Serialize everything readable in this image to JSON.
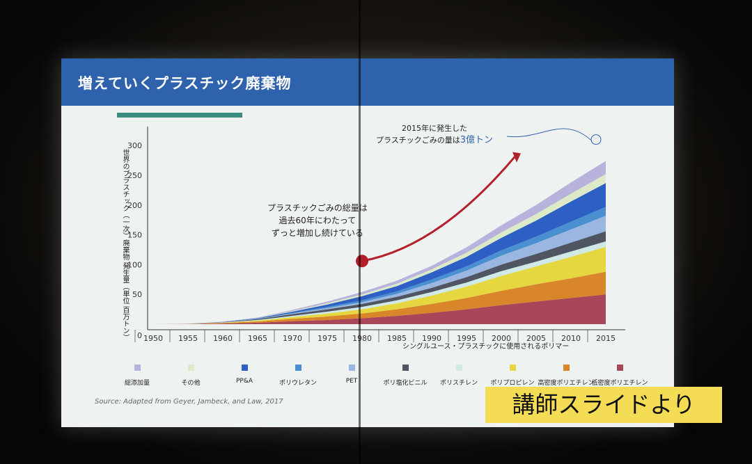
{
  "slide": {
    "title": "増えていくプラスチック廃棄物",
    "source": "Source:  Adapted from Geyer, Jambeck, and Law, 2017",
    "annotation_2015_line1": "2015年に発生した",
    "annotation_2015_line2a": "プラスチックごみの量は",
    "annotation_2015_line2b": "3億トン",
    "annotation_mid_line1": "プラスチックごみの総量は",
    "annotation_mid_line2": "過去60年にわたって",
    "annotation_mid_line3": "ずっと増加し続けている",
    "x_axis_title": "シングルユース・プラスチックに使用されるポリマー",
    "y_axis_label": "世界のプラスチック（一次）廃棄物 発生量（単位 百万トン）"
  },
  "watermark": "講師スライドより",
  "colors": {
    "title_bar": "#2f62ad",
    "accent_teal": "#3d8c80",
    "arrow": "#b3202a",
    "watermark_bg": "#f4dd55"
  },
  "chart_data": {
    "type": "area",
    "stacked": true,
    "xlabel": "シングルユース・プラスチックに使用されるポリマー",
    "ylabel": "世界のプラスチック（一次）廃棄物 発生量（単位 百万トン）",
    "ylim": [
      0,
      320
    ],
    "xlim": [
      1950,
      2015
    ],
    "x_ticks": [
      "1950",
      "1955",
      "1960",
      "1965",
      "1970",
      "1975",
      "1980",
      "1985",
      "1990",
      "1995",
      "2000",
      "2005",
      "2010",
      "2015"
    ],
    "y_ticks": [
      "0",
      "50",
      "100",
      "150",
      "200",
      "250",
      "300"
    ],
    "grid": false,
    "legend_position": "bottom",
    "x": [
      1950,
      1955,
      1960,
      1965,
      1970,
      1975,
      1980,
      1985,
      1990,
      1995,
      2000,
      2005,
      2010,
      2015
    ],
    "series": [
      {
        "name": "低密度ポリエチレン",
        "color": "#a8465a",
        "values": [
          0,
          0.2,
          1,
          2.5,
          5,
          7,
          10,
          14,
          19,
          25,
          32,
          38,
          44,
          50
        ]
      },
      {
        "name": "高密度ポリエチレン",
        "color": "#d9852a",
        "values": [
          0,
          0.2,
          1,
          2,
          4,
          6,
          8,
          11,
          15,
          19,
          24,
          29,
          33,
          38
        ]
      },
      {
        "name": "ポリプロピレン",
        "color": "#e6d640",
        "values": [
          0,
          0.1,
          0.5,
          1.5,
          3,
          5,
          7,
          10,
          14,
          19,
          25,
          30,
          36,
          42
        ]
      },
      {
        "name": "ポリスチレン",
        "color": "#cfe9e6",
        "values": [
          0,
          0.1,
          0.4,
          1,
          2,
          3,
          4,
          5,
          6,
          7,
          8,
          8,
          9,
          9
        ]
      },
      {
        "name": "ポリ塩化ビニル",
        "color": "#4f5563",
        "values": [
          0,
          0.1,
          0.5,
          1.5,
          3,
          4,
          5,
          6,
          7,
          9,
          11,
          13,
          15,
          17
        ]
      },
      {
        "name": "PET",
        "color": "#9bb6e0",
        "values": [
          0,
          0,
          0.1,
          0.3,
          1,
          2,
          3,
          5,
          8,
          11,
          15,
          18,
          22,
          26
        ]
      },
      {
        "name": "ポリウレタン",
        "color": "#4a8fd0",
        "values": [
          0,
          0,
          0.2,
          0.5,
          1,
          2,
          3,
          4,
          6,
          7,
          9,
          11,
          13,
          15
        ]
      },
      {
        "name": "PP&A",
        "color": "#2d5fc4",
        "values": [
          0,
          0,
          0.2,
          0.8,
          2,
          4,
          7,
          9,
          12,
          16,
          21,
          27,
          34,
          40
        ]
      },
      {
        "name": "その他",
        "color": "#dceac8",
        "values": [
          0,
          0,
          0.1,
          0.3,
          1,
          2,
          3,
          4,
          5,
          7,
          9,
          11,
          13,
          15
        ]
      },
      {
        "name": "総添加量",
        "color": "#b7b3dc",
        "values": [
          0,
          0.1,
          0.3,
          0.7,
          2,
          3,
          4,
          5,
          6,
          9,
          12,
          15,
          19,
          22
        ]
      }
    ],
    "annotations": [
      "2015年に発生したプラスチックごみの量は3億トン",
      "プラスチックごみの総量は過去60年にわたってずっと増加し続けている"
    ]
  }
}
